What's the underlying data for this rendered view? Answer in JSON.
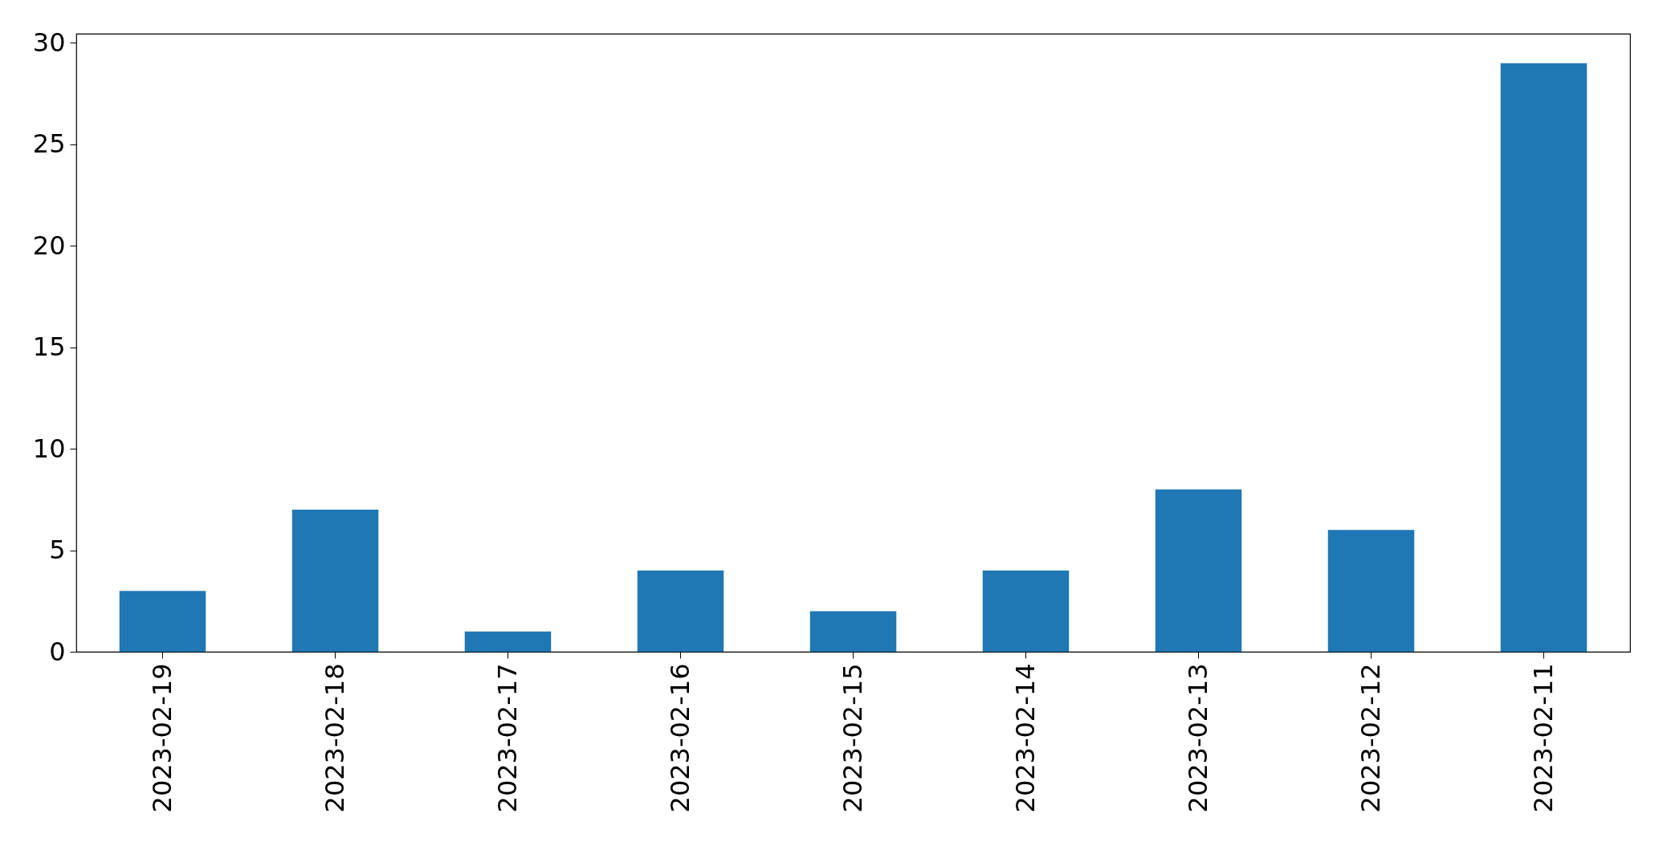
{
  "chart_data": {
    "type": "bar",
    "categories": [
      "2023-02-19",
      "2023-02-18",
      "2023-02-17",
      "2023-02-16",
      "2023-02-15",
      "2023-02-14",
      "2023-02-13",
      "2023-02-12",
      "2023-02-11"
    ],
    "values": [
      3,
      7,
      1,
      4,
      2,
      4,
      8,
      6,
      29
    ],
    "color": "#1f77b4",
    "ylim": [
      0,
      30.45
    ],
    "yticks": [
      0,
      5,
      10,
      15,
      20,
      25,
      30
    ],
    "grid": false
  }
}
